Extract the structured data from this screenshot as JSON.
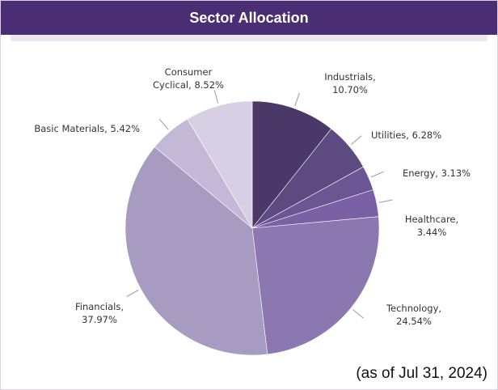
{
  "chart_data": {
    "type": "pie",
    "title": "Sector Allocation",
    "categories": [
      "Industrials",
      "Utilities",
      "Energy",
      "Healthcare",
      "Technology",
      "Financials",
      "Basic Materials",
      "Consumer Cyclical"
    ],
    "values": [
      10.7,
      6.28,
      3.13,
      3.44,
      24.54,
      37.97,
      5.42,
      8.52
    ],
    "value_labels": [
      "Industrials, 10.70%",
      "Utilities, 6.28%",
      "Energy, 3.13%",
      "Healthcare, 3.44%",
      "Technology, 24.54%",
      "Financials, 37.97%",
      "Basic Materials, 5.42%",
      "Consumer Cyclical, 8.52%"
    ],
    "colors": [
      "#4a3868",
      "#5d4a80",
      "#6b5592",
      "#7a60a4",
      "#8c78b0",
      "#a89bc2",
      "#c3b9d7",
      "#d7d0e4"
    ],
    "note": "(as of Jul 31, 2024)"
  }
}
